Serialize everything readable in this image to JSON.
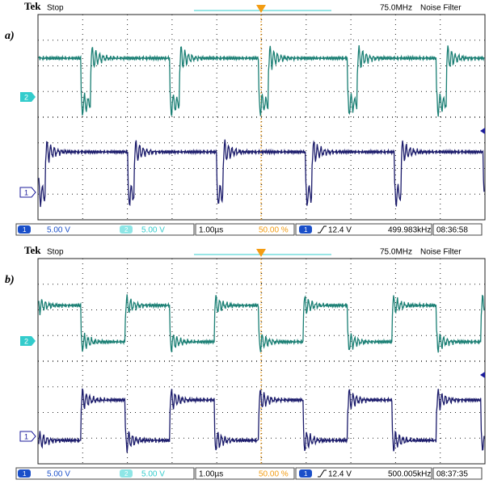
{
  "panels": [
    {
      "label": "a)",
      "header": {
        "brand": "Tek",
        "state": "Stop",
        "bandwidth": "75.0MHz",
        "filter": "Noise Filter"
      },
      "markers": {
        "ch2": "2",
        "ch1": "1"
      },
      "footer": {
        "ch1_badge": "1",
        "ch1_scale": "5.00 V",
        "ch2_badge": "2",
        "ch2_scale": "5.00 V",
        "timebase": "1.00µs",
        "position": "50.00 %",
        "trigger_badge": "1",
        "trigger_level": "12.4 V",
        "frequency": "499.983kHz",
        "time": "08:36:58"
      }
    },
    {
      "label": "b)",
      "header": {
        "brand": "Tek",
        "state": "Stop",
        "bandwidth": "75.0MHz",
        "filter": "Noise Filter"
      },
      "markers": {
        "ch2": "2",
        "ch1": "1"
      },
      "footer": {
        "ch1_badge": "1",
        "ch1_scale": "5.00 V",
        "ch2_badge": "2",
        "ch2_scale": "5.00 V",
        "timebase": "1.00µs",
        "position": "50.00 %",
        "trigger_badge": "1",
        "trigger_level": "12.4 V",
        "frequency": "500.005kHz",
        "time": "08:37:35"
      }
    }
  ]
}
